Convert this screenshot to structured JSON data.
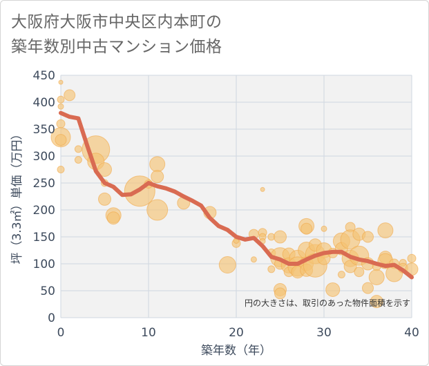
{
  "chart_data": {
    "type": "scatter",
    "title_lines": [
      "大阪府大阪市中央区内本町の",
      "築年数別中古マンション価格"
    ],
    "xlabel": "築年数（年）",
    "ylabel": "坪（3.3㎡）単価（万円）",
    "annotation": "円の大きさは、取引のあった物件面積を示す",
    "xlim": [
      0,
      40
    ],
    "ylim": [
      0,
      450
    ],
    "x_ticks": [
      "0",
      "10",
      "20",
      "30",
      "40"
    ],
    "y_ticks": [
      "0",
      "50",
      "100",
      "150",
      "200",
      "250",
      "300",
      "350",
      "400",
      "450"
    ],
    "grid": true,
    "colors": {
      "bubble_fill": "#f5c374",
      "bubble_stroke": "#f0a84a",
      "line": "#d96b52",
      "grid": "#cfd7e0",
      "plot_bg": "#f2f2f2"
    },
    "bubble_series": [
      {
        "x": 0,
        "y": 437,
        "r": 3
      },
      {
        "x": 0,
        "y": 405,
        "r": 5
      },
      {
        "x": 0,
        "y": 392,
        "r": 4
      },
      {
        "x": 0,
        "y": 360,
        "r": 6
      },
      {
        "x": 0,
        "y": 335,
        "r": 14
      },
      {
        "x": 0,
        "y": 330,
        "r": 8
      },
      {
        "x": 0,
        "y": 275,
        "r": 5
      },
      {
        "x": 1,
        "y": 413,
        "r": 8
      },
      {
        "x": 2,
        "y": 313,
        "r": 5
      },
      {
        "x": 2,
        "y": 293,
        "r": 5
      },
      {
        "x": 4,
        "y": 312,
        "r": 20
      },
      {
        "x": 4,
        "y": 290,
        "r": 12
      },
      {
        "x": 5,
        "y": 275,
        "r": 10
      },
      {
        "x": 5,
        "y": 250,
        "r": 5
      },
      {
        "x": 5,
        "y": 220,
        "r": 9
      },
      {
        "x": 6,
        "y": 190,
        "r": 11
      },
      {
        "x": 6,
        "y": 185,
        "r": 9
      },
      {
        "x": 9,
        "y": 235,
        "r": 22
      },
      {
        "x": 10,
        "y": 248,
        "r": 6
      },
      {
        "x": 11,
        "y": 285,
        "r": 11
      },
      {
        "x": 11,
        "y": 262,
        "r": 9
      },
      {
        "x": 11,
        "y": 200,
        "r": 15
      },
      {
        "x": 14,
        "y": 213,
        "r": 9
      },
      {
        "x": 17,
        "y": 195,
        "r": 9
      },
      {
        "x": 19,
        "y": 98,
        "r": 12
      },
      {
        "x": 20,
        "y": 138,
        "r": 6
      },
      {
        "x": 20,
        "y": 143,
        "r": 4
      },
      {
        "x": 22,
        "y": 155,
        "r": 7
      },
      {
        "x": 22,
        "y": 108,
        "r": 4
      },
      {
        "x": 23,
        "y": 238,
        "r": 3
      },
      {
        "x": 23,
        "y": 158,
        "r": 6
      },
      {
        "x": 23,
        "y": 150,
        "r": 5
      },
      {
        "x": 23,
        "y": 142,
        "r": 4
      },
      {
        "x": 24,
        "y": 150,
        "r": 5
      },
      {
        "x": 24,
        "y": 120,
        "r": 6
      },
      {
        "x": 24,
        "y": 90,
        "r": 5
      },
      {
        "x": 25,
        "y": 150,
        "r": 9
      },
      {
        "x": 25,
        "y": 112,
        "r": 14
      },
      {
        "x": 25,
        "y": 100,
        "r": 8
      },
      {
        "x": 25,
        "y": 52,
        "r": 9
      },
      {
        "x": 25,
        "y": 45,
        "r": 8
      },
      {
        "x": 26,
        "y": 118,
        "r": 9
      },
      {
        "x": 26,
        "y": 97,
        "r": 11
      },
      {
        "x": 26,
        "y": 85,
        "r": 7
      },
      {
        "x": 27,
        "y": 110,
        "r": 12
      },
      {
        "x": 27,
        "y": 95,
        "r": 14
      },
      {
        "x": 27,
        "y": 85,
        "r": 9
      },
      {
        "x": 28,
        "y": 170,
        "r": 11
      },
      {
        "x": 28,
        "y": 165,
        "r": 8
      },
      {
        "x": 28,
        "y": 125,
        "r": 12
      },
      {
        "x": 28,
        "y": 100,
        "r": 10
      },
      {
        "x": 28,
        "y": 88,
        "r": 9
      },
      {
        "x": 29,
        "y": 118,
        "r": 14
      },
      {
        "x": 29,
        "y": 97,
        "r": 17
      },
      {
        "x": 29,
        "y": 135,
        "r": 9
      },
      {
        "x": 30,
        "y": 165,
        "r": 4
      },
      {
        "x": 30,
        "y": 125,
        "r": 11
      },
      {
        "x": 30,
        "y": 110,
        "r": 9
      },
      {
        "x": 31,
        "y": 52,
        "r": 10
      },
      {
        "x": 31,
        "y": 120,
        "r": 7
      },
      {
        "x": 32,
        "y": 142,
        "r": 12
      },
      {
        "x": 32,
        "y": 128,
        "r": 9
      },
      {
        "x": 32,
        "y": 80,
        "r": 5
      },
      {
        "x": 33,
        "y": 168,
        "r": 7
      },
      {
        "x": 33,
        "y": 145,
        "r": 14
      },
      {
        "x": 33,
        "y": 110,
        "r": 12
      },
      {
        "x": 33,
        "y": 95,
        "r": 9
      },
      {
        "x": 34,
        "y": 155,
        "r": 9
      },
      {
        "x": 34,
        "y": 115,
        "r": 14
      },
      {
        "x": 34,
        "y": 85,
        "r": 7
      },
      {
        "x": 35,
        "y": 150,
        "r": 8
      },
      {
        "x": 35,
        "y": 100,
        "r": 9
      },
      {
        "x": 35,
        "y": 55,
        "r": 8
      },
      {
        "x": 36,
        "y": 95,
        "r": 6
      },
      {
        "x": 36,
        "y": 75,
        "r": 11
      },
      {
        "x": 36,
        "y": 30,
        "r": 9
      },
      {
        "x": 37,
        "y": 162,
        "r": 11
      },
      {
        "x": 37,
        "y": 112,
        "r": 9
      },
      {
        "x": 37,
        "y": 105,
        "r": 11
      },
      {
        "x": 38,
        "y": 100,
        "r": 7
      },
      {
        "x": 38,
        "y": 82,
        "r": 12
      },
      {
        "x": 39,
        "y": 102,
        "r": 5
      },
      {
        "x": 39,
        "y": 92,
        "r": 7
      },
      {
        "x": 40,
        "y": 110,
        "r": 6
      },
      {
        "x": 40,
        "y": 90,
        "r": 9
      }
    ],
    "trend_line": {
      "x": [
        0,
        1,
        2,
        3,
        4,
        5,
        6,
        7,
        8,
        9,
        10,
        11,
        12,
        13,
        14,
        15,
        16,
        17,
        18,
        19,
        20,
        21,
        22,
        23,
        24,
        25,
        26,
        27,
        28,
        29,
        30,
        31,
        32,
        33,
        34,
        35,
        36,
        37,
        38,
        39,
        40
      ],
      "y": [
        380,
        373,
        370,
        320,
        272,
        250,
        243,
        228,
        229,
        238,
        250,
        244,
        240,
        234,
        225,
        217,
        208,
        185,
        170,
        163,
        150,
        145,
        148,
        133,
        113,
        108,
        100,
        100,
        108,
        115,
        120,
        122,
        122,
        113,
        108,
        105,
        100,
        96,
        98,
        88,
        75
      ]
    }
  }
}
